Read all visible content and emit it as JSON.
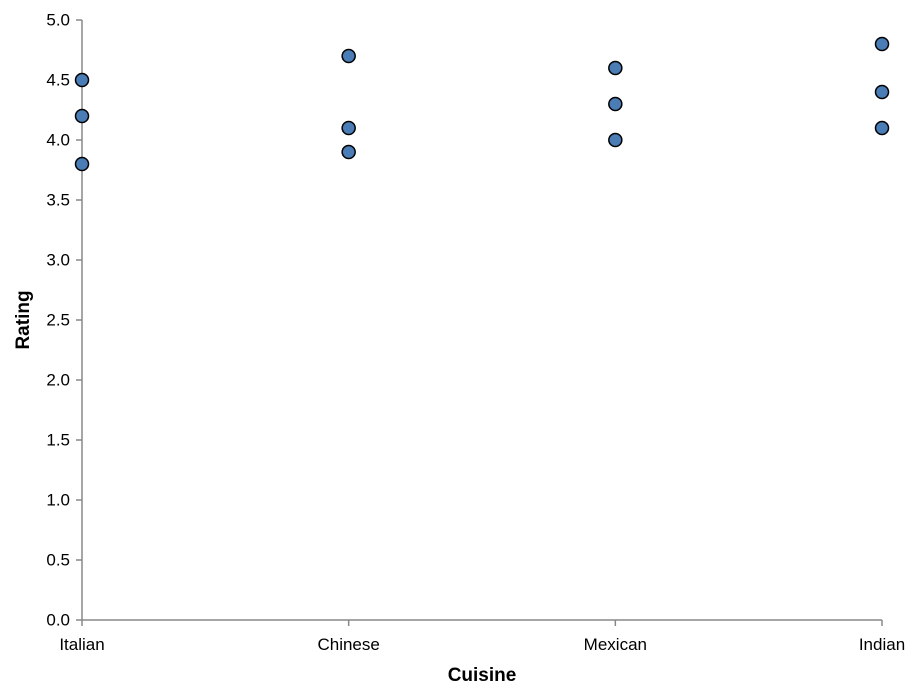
{
  "chart_data": {
    "type": "scatter",
    "title": "",
    "xlabel": "Cuisine",
    "ylabel": "Rating",
    "categories": [
      "Italian",
      "Chinese",
      "Mexican",
      "Indian"
    ],
    "ylim": [
      0,
      5
    ],
    "yticks": [
      "0.0",
      "0.5",
      "1.0",
      "1.5",
      "2.0",
      "2.5",
      "3.0",
      "3.5",
      "4.0",
      "4.5",
      "5.0"
    ],
    "grid": false,
    "legend": "none",
    "points": [
      {
        "x": "Italian",
        "y": 4.5
      },
      {
        "x": "Italian",
        "y": 4.2
      },
      {
        "x": "Italian",
        "y": 3.8
      },
      {
        "x": "Chinese",
        "y": 4.7
      },
      {
        "x": "Chinese",
        "y": 4.1
      },
      {
        "x": "Chinese",
        "y": 3.9
      },
      {
        "x": "Mexican",
        "y": 4.6
      },
      {
        "x": "Mexican",
        "y": 4.3
      },
      {
        "x": "Mexican",
        "y": 4.0
      },
      {
        "x": "Indian",
        "y": 4.8
      },
      {
        "x": "Indian",
        "y": 4.4
      },
      {
        "x": "Indian",
        "y": 4.1
      }
    ],
    "colors": {
      "point_fill": "#4a7db5",
      "point_stroke": "#000000",
      "axis": "#888888"
    }
  }
}
